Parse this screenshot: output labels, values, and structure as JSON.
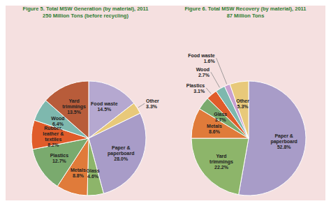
{
  "chart_data": [
    {
      "type": "pie",
      "title": "Figure 5. Total MSW Generation (by material), 2011\n250 Million Tons (before recycling)",
      "categories": [
        "Food waste",
        "Other",
        "Paper & paperboard",
        "Glass",
        "Metals",
        "Plastics",
        "Rubber, leather & textiles",
        "Wood",
        "Yard trimmings"
      ],
      "values": [
        14.5,
        3.3,
        28.0,
        4.6,
        8.8,
        12.7,
        8.2,
        6.4,
        13.5
      ],
      "value_labels": [
        "14.5%",
        "3.3%",
        "28.0%",
        "4.6%",
        "8.8%",
        "12.7%",
        "8.2%",
        "6.4%",
        "13.5%"
      ],
      "colors": [
        "#b5a8d0",
        "#e8c97a",
        "#a89cc8",
        "#8db56a",
        "#e07b3a",
        "#7aaa6e",
        "#e05c2a",
        "#7eb8ae",
        "#b85c3a"
      ]
    },
    {
      "type": "pie",
      "title": "Figure 6. Total MSW Recovery (by material), 2011\n87 Million Tons",
      "categories": [
        "Paper & paperboard",
        "Yard trimmings",
        "Metals",
        "Glass",
        "Plastics",
        "Wood",
        "Food waste",
        "Other"
      ],
      "values": [
        52.8,
        22.2,
        8.6,
        3.7,
        3.1,
        2.7,
        1.6,
        5.3
      ],
      "value_labels": [
        "52.8%",
        "22.2%",
        "8.6%",
        "3.7%",
        "3.1%",
        "2.7%",
        "1.6%",
        "5.3%"
      ],
      "colors": [
        "#a89cc8",
        "#8db56a",
        "#e07b3a",
        "#7aaa6e",
        "#e05c2a",
        "#7eb8ae",
        "#c8a0d0",
        "#e8c97a"
      ]
    }
  ]
}
